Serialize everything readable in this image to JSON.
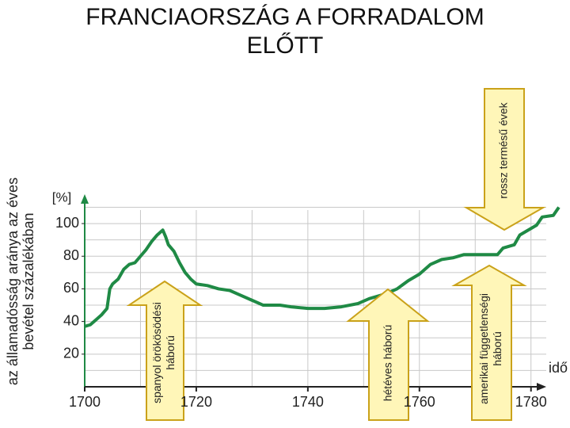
{
  "title": "FRANCIAORSZÁG A FORRADALOM ELŐTT",
  "chart_data": {
    "type": "line",
    "y_label_lines": [
      "az államadósság aránya az éves",
      "bevétel százalékában"
    ],
    "y_unit": "[%]",
    "x_label": "idő",
    "x": [
      1700,
      1701,
      1702,
      1703,
      1704,
      1704.5,
      1705,
      1706,
      1707,
      1708,
      1709,
      1710,
      1711,
      1712,
      1713,
      1714,
      1714.5,
      1715,
      1716,
      1717,
      1718,
      1719,
      1720,
      1722,
      1724,
      1726,
      1728,
      1730,
      1732,
      1735,
      1737,
      1740,
      1743,
      1746,
      1749,
      1751,
      1754,
      1756,
      1758,
      1760,
      1762,
      1764,
      1766,
      1768,
      1770,
      1774,
      1775,
      1777,
      1778,
      1780,
      1781,
      1782,
      1784,
      1785
    ],
    "series": [
      {
        "color": "#1f8a45",
        "values": [
          37,
          38,
          41,
          44,
          48,
          60,
          63,
          66,
          72,
          75,
          76,
          80,
          84,
          89,
          93,
          96,
          92,
          87,
          83,
          76,
          70,
          66,
          63,
          62,
          60,
          59,
          56,
          53,
          50,
          50,
          49,
          48,
          48,
          49,
          51,
          54,
          57,
          60,
          65,
          69,
          75,
          78,
          79,
          81,
          81,
          81,
          85,
          87,
          93,
          97,
          99,
          104,
          105,
          110
        ]
      }
    ],
    "xlim": [
      1700,
      1786
    ],
    "ylim": [
      0,
      118
    ],
    "xticks": [
      1700,
      1720,
      1740,
      1760,
      1780
    ],
    "yticks": [
      20,
      40,
      60,
      80,
      100
    ],
    "xgrid": [
      1710,
      1720,
      1730,
      1740,
      1750,
      1760,
      1770,
      1780
    ],
    "ygrid": [
      10,
      20,
      30,
      40,
      50,
      60,
      70,
      80,
      90,
      100,
      110
    ],
    "annotations": [
      {
        "lines": [
          "spanyol örökösödési",
          "háború"
        ]
      },
      {
        "lines": [
          "hétéves háború"
        ]
      },
      {
        "lines": [
          "amerikai függetlenségi",
          "háború"
        ]
      },
      {
        "lines": [
          "rossz termésű évek"
        ]
      }
    ]
  }
}
